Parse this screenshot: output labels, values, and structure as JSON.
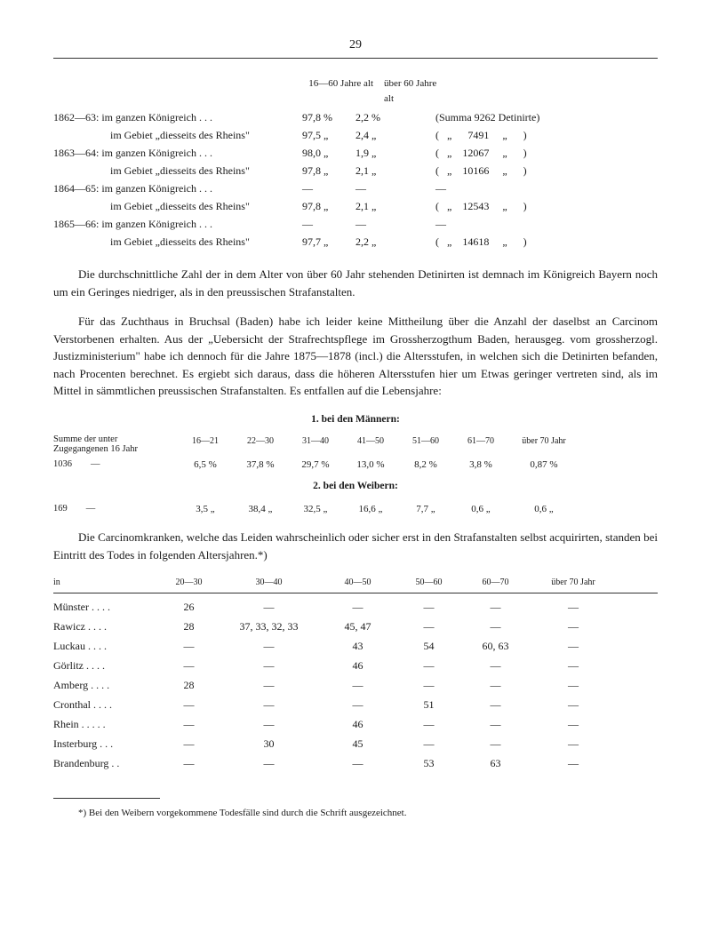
{
  "pageNumber": "29",
  "table1": {
    "headerCol2": "16—60 Jahre alt",
    "headerCol3": "über 60 Jahre alt",
    "rows": [
      {
        "a": "1862—63: im ganzen Königreich . . .",
        "b": "97,8 %",
        "c": "2,2 %",
        "d": "(Summa 9262 Detinirte)"
      },
      {
        "a": "im Gebiet „diesseits des Rheins\"",
        "b": "97,5 „",
        "c": "2,4 „",
        "d": "(   „      7491     „      )",
        "indent": true
      },
      {
        "a": "1863—64: im ganzen Königreich . . .",
        "b": "98,0 „",
        "c": "1,9 „",
        "d": "(   „    12067     „      )"
      },
      {
        "a": "im Gebiet „diesseits des Rheins\"",
        "b": "97,8 „",
        "c": "2,1 „",
        "d": "(   „    10166     „      )",
        "indent": true
      },
      {
        "a": "1864—65: im ganzen Königreich . . .",
        "b": "—",
        "c": "—",
        "d": "—"
      },
      {
        "a": "im Gebiet „diesseits des Rheins\"",
        "b": "97,8 „",
        "c": "2,1 „",
        "d": "(   „    12543     „      )",
        "indent": true
      },
      {
        "a": "1865—66: im ganzen Königreich . . .",
        "b": "—",
        "c": "—",
        "d": "—"
      },
      {
        "a": "im Gebiet „diesseits des Rheins\"",
        "b": "97,7 „",
        "c": "2,2 „",
        "d": "(   „    14618     „      )",
        "indent": true
      }
    ]
  },
  "para1": "Die durchschnittliche Zahl der in dem Alter von über 60 Jahr stehenden Detinirten ist demnach im Königreich Bayern noch um ein Geringes niedriger, als in den preussischen Strafanstalten.",
  "para2": "Für das Zuchthaus in Bruchsal (Baden) habe ich leider keine Mittheilung über die Anzahl der daselbst an Carcinom Verstorbenen erhalten. Aus der „Uebersicht der Strafrechtspflege im Grossherzogthum Baden, herausgeg. vom grossherzogl. Justizministerium\" habe ich dennoch für die Jahre 1875—1878 (incl.) die Altersstufen, in welchen sich die Detinirten befanden, nach Procenten berechnet. Es ergiebt sich daraus, dass die höheren Altersstufen hier um Etwas geringer vertreten sind, als im Mittel in sämmtlichen preussischen Strafanstalten. Es entfallen auf die Lebensjahre:",
  "table2": {
    "heading1": "1. bei den Männern:",
    "labelRow": "Summe der    unter\nZugegangenen 16 Jahr",
    "headers": [
      "16—21",
      "22—30",
      "31—40",
      "41—50",
      "51—60",
      "61—70",
      "über 70 Jahr"
    ],
    "row1label": "1036        —",
    "row1": [
      "6,5 %",
      "37,8 %",
      "29,7 %",
      "13,0 %",
      "8,2 %",
      "3,8 %",
      "0,87 %"
    ],
    "heading2": "2. bei den Weibern:",
    "row2label": "169        —",
    "row2": [
      "3,5 „",
      "38,4 „",
      "32,5 „",
      "16,6 „",
      "7,7 „",
      "0,6 „",
      "0,6  „"
    ]
  },
  "para3": "Die Carcinomkranken, welche das Leiden wahrscheinlich oder sicher erst in den Strafanstalten selbst acquirirten, standen bei Eintritt des Todes in folgenden Altersjahren.*)",
  "table3": {
    "headers": [
      "in",
      "20—30",
      "30—40",
      "40—50",
      "50—60",
      "60—70",
      "über 70 Jahr"
    ],
    "rows": [
      {
        "name": "Münster . . . .",
        "c2": "26",
        "c3": "—",
        "c4": "—",
        "c5": "—",
        "c6": "—",
        "c7": "—"
      },
      {
        "name": "Rawicz . . . .",
        "c2": "28",
        "c3": "37, 33, 32, 33",
        "c4": "45, 47",
        "c5": "—",
        "c6": "—",
        "c7": "—"
      },
      {
        "name": "Luckau . . . .",
        "c2": "—",
        "c3": "—",
        "c4": "43",
        "c5": "54",
        "c6": "60, 63",
        "c7": "—"
      },
      {
        "name": "Görlitz . . . .",
        "c2": "—",
        "c3": "—",
        "c4": "46",
        "c5": "—",
        "c6": "—",
        "c7": "—"
      },
      {
        "name": "Amberg . . . .",
        "c2": "28",
        "c3": "—",
        "c4": "—",
        "c5": "—",
        "c6": "—",
        "c7": "—"
      },
      {
        "name": "Cronthal . . . .",
        "c2": "—",
        "c3": "—",
        "c4": "—",
        "c5": "51",
        "c6": "—",
        "c7": "—"
      },
      {
        "name": "Rhein . . . . .",
        "c2": "—",
        "c3": "—",
        "c4": "46",
        "c5": "—",
        "c6": "—",
        "c7": "—"
      },
      {
        "name": "Insterburg . . .",
        "c2": "—",
        "c3": "30",
        "c4": "45",
        "c5": "—",
        "c6": "—",
        "c7": "—"
      },
      {
        "name": "Brandenburg . .",
        "c2": "—",
        "c3": "—",
        "c4": "—",
        "c5": "53",
        "c6": "63",
        "c7": "—"
      }
    ]
  },
  "footnote": "*) Bei den Weibern vorgekommene Todesfälle sind durch die Schrift ausgezeichnet."
}
